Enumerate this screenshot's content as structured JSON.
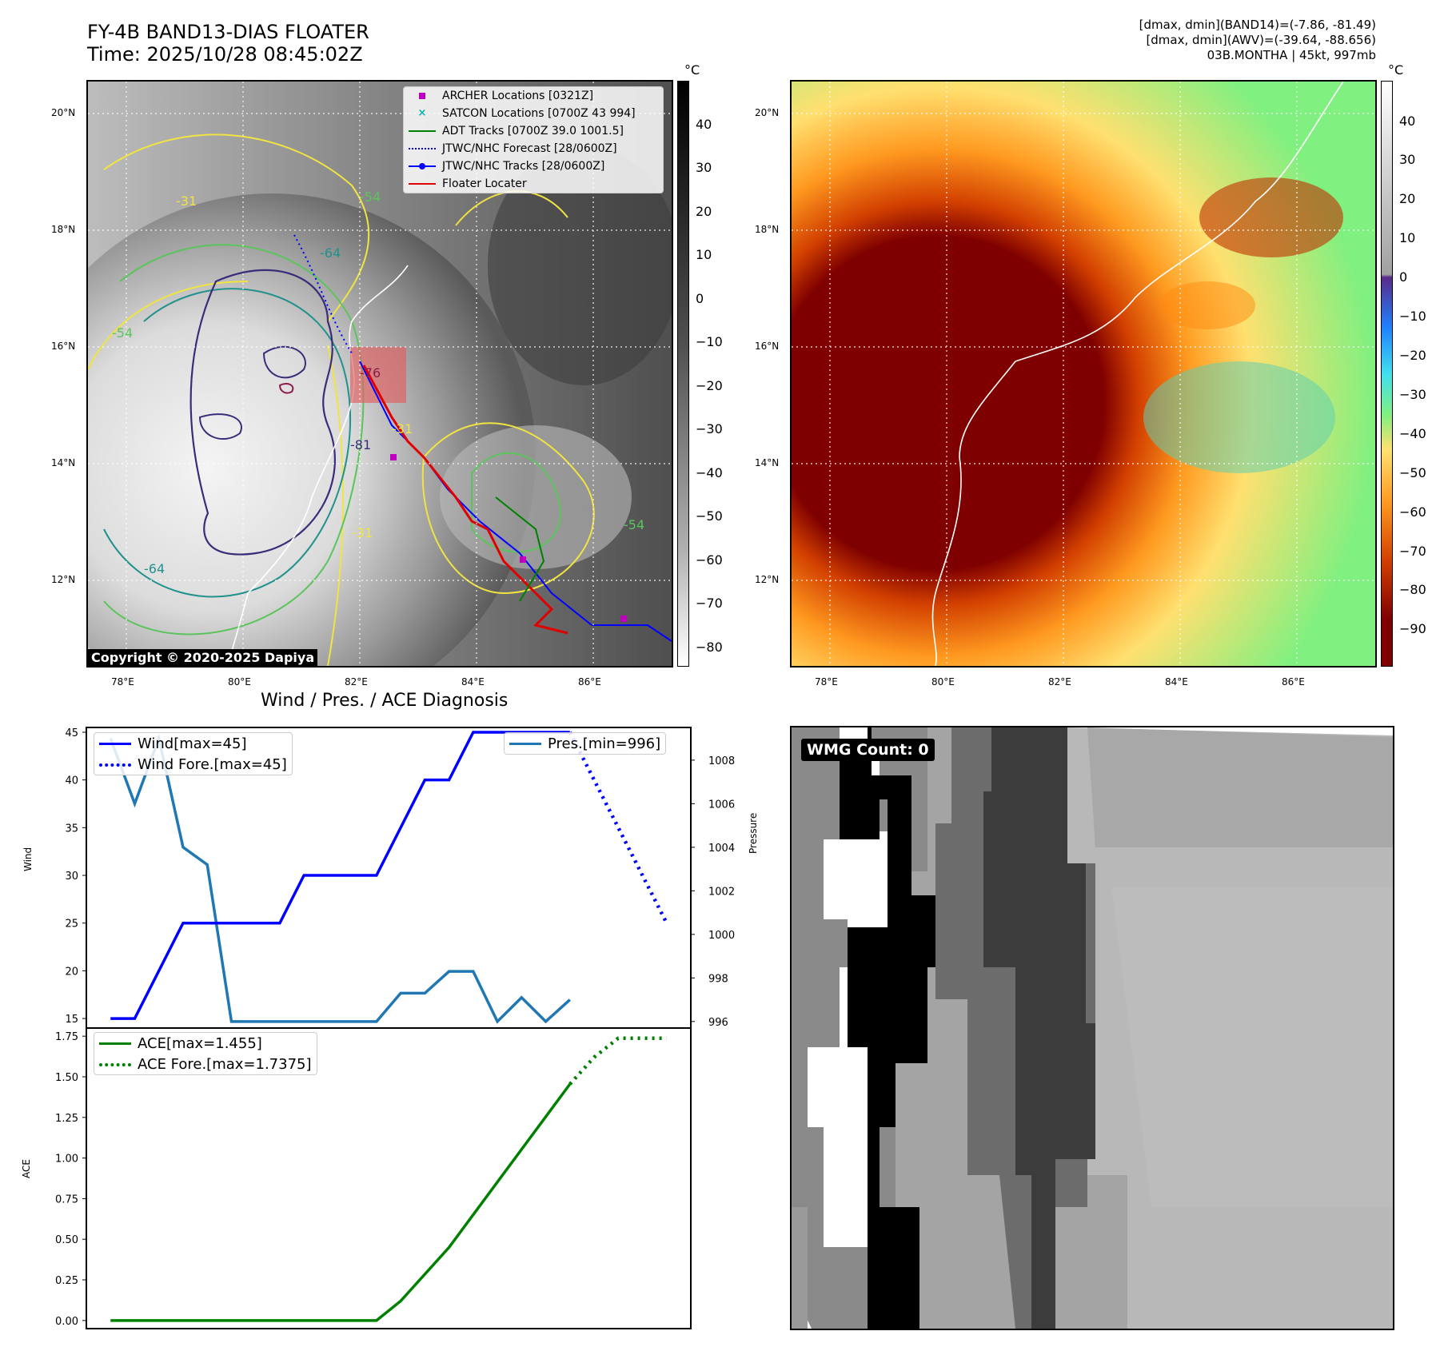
{
  "header": {
    "title_line1": "FY-4B BAND13-DIAS FLOATER",
    "title_line2": "Time: 2025/10/28 08:45:02Z",
    "info_line1": "[dmax, dmin](BAND14)=(-7.86, -81.49)",
    "info_line2": "[dmax, dmin](AWV)=(-39.64, -88.656)",
    "info_line3": "03B.MONTHA | 45kt, 997mb"
  },
  "maps": {
    "lon_ticks": [
      "78°E",
      "80°E",
      "82°E",
      "84°E",
      "86°E"
    ],
    "lat_ticks": [
      "20°N",
      "18°N",
      "16°N",
      "14°N",
      "12°N"
    ],
    "contour_labels": [
      "-31",
      "-54",
      "-64",
      "-76",
      "-81",
      "-31",
      "-54",
      "-64",
      "-31",
      "-54"
    ],
    "copyright": "Copyright © 2020-2025 Dapiya",
    "left_colorbar": {
      "unit": "°C",
      "ticks": [
        "40",
        "30",
        "20",
        "10",
        "0",
        "−10",
        "−20",
        "−30",
        "−40",
        "−50",
        "−60",
        "−70",
        "−80"
      ]
    },
    "right_colorbar": {
      "unit": "°C",
      "ticks": [
        "40",
        "30",
        "20",
        "10",
        "0",
        "−10",
        "−20",
        "−30",
        "−40",
        "−50",
        "−60",
        "−70",
        "−80",
        "−90"
      ]
    },
    "legend": [
      {
        "label": "ARCHER Locations [0321Z]",
        "color": "#c000c0",
        "symbol": "square"
      },
      {
        "label": "SATCON Locations [0700Z 43 994]",
        "color": "#00b3b3",
        "symbol": "x"
      },
      {
        "label": "ADT Tracks [0700Z 39.0 1001.5]",
        "color": "#007f00",
        "symbol": "line"
      },
      {
        "label": "JTWC/NHC Forecast [28/0600Z]",
        "color": "#0000ff",
        "symbol": "dotted"
      },
      {
        "label": "JTWC/NHC Tracks [28/0600Z]",
        "color": "#0000ff",
        "symbol": "line-dot"
      },
      {
        "label": "Floater Locater",
        "color": "#e00000",
        "symbol": "line"
      }
    ]
  },
  "diagnosis": {
    "title": "Wind / Pres. / ACE Diagnosis",
    "wind_ylabel": "Wind",
    "pres_ylabel": "Pressure",
    "ace_ylabel": "ACE",
    "wind_legend": [
      "Wind[max=45]",
      "Wind Fore.[max=45]"
    ],
    "pres_legend": [
      "Pres.[min=996]"
    ],
    "ace_legend": [
      "ACE[max=1.455]",
      "ACE Fore.[max=1.7375]"
    ],
    "wmg_label": "WMG Count: 0"
  },
  "chart_data": [
    {
      "type": "line",
      "title": "Wind / Pres. / ACE Diagnosis",
      "ylabel": "Wind",
      "ylim": [
        14,
        45.5
      ],
      "yticks": [
        15,
        20,
        25,
        30,
        35,
        40,
        45
      ],
      "series": [
        {
          "name": "Wind[max=45]",
          "color": "#0000ff",
          "style": "solid",
          "x": [
            0,
            1,
            3,
            7,
            8,
            11,
            13,
            14,
            15,
            16,
            19
          ],
          "values": [
            15,
            15,
            25,
            25,
            30,
            30,
            40,
            40,
            45,
            45,
            45
          ]
        },
        {
          "name": "Wind Fore.[max=45]",
          "color": "#0000ff",
          "style": "dotted",
          "x": [
            19,
            23
          ],
          "values": [
            45,
            25
          ]
        }
      ]
    },
    {
      "type": "line",
      "ylabel": "Pressure",
      "ylim": [
        995.7,
        1009.5
      ],
      "yticks": [
        996,
        998,
        1000,
        1002,
        1004,
        1006,
        1008
      ],
      "series": [
        {
          "name": "Pres.[min=996]",
          "color": "#1f77b4",
          "style": "solid",
          "x": [
            0,
            1,
            2,
            3,
            4,
            5,
            6,
            11,
            12,
            13,
            14,
            15,
            16,
            17,
            18,
            19
          ],
          "values": [
            1009,
            1006,
            1009,
            1004,
            1003.2,
            996,
            996,
            996,
            997.3,
            997.3,
            998.3,
            998.3,
            996,
            997.1,
            996,
            997
          ]
        }
      ]
    },
    {
      "type": "line",
      "ylabel": "ACE",
      "ylim": [
        -0.05,
        1.8
      ],
      "yticks": [
        0.0,
        0.25,
        0.5,
        0.75,
        1.0,
        1.25,
        1.5,
        1.75
      ],
      "ytick_labels": [
        "0.00",
        "0.25",
        "0.50",
        "0.75",
        "1.00",
        "1.25",
        "1.50",
        "1.75"
      ],
      "series": [
        {
          "name": "ACE[max=1.455]",
          "color": "#008000",
          "style": "solid",
          "x": [
            0,
            11,
            12,
            14,
            19
          ],
          "values": [
            0,
            0,
            0.12,
            0.45,
            1.455
          ]
        },
        {
          "name": "ACE Fore.[max=1.7375]",
          "color": "#008000",
          "style": "dotted",
          "x": [
            19,
            20,
            21,
            23
          ],
          "values": [
            1.455,
            1.62,
            1.7375,
            1.7375
          ]
        }
      ]
    }
  ]
}
